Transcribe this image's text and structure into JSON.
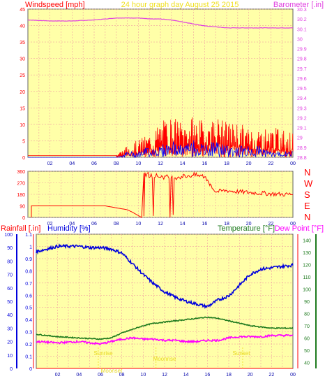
{
  "header": {
    "windspeed_label": "Windspeed [mph]",
    "title": "24 hour graph day   August 25 2015",
    "barometer_label": "Barometer [.in]"
  },
  "middle": {
    "dir_letters": [
      "N",
      "W",
      "S",
      "E",
      "N"
    ]
  },
  "bottom_header": {
    "rainfall_label": "Rainfall [.in]",
    "humidity_label": "Humidity [%]",
    "temperature_label": "Temperature [°F]",
    "dewpoint_label": "Dew Point [°F]"
  },
  "annotations": {
    "sunrise": "Sunrise",
    "moonset": "Moonset",
    "moonrise": "Moonrise",
    "sunset": "Sunset"
  },
  "colors": {
    "plot_bg": "#ffffa8",
    "grid": "#f0a0a0",
    "wind_speed": "#ff0000",
    "wind_gust": "#0000ff",
    "barometer": "#e040e0",
    "humidity": "#0000dd",
    "temperature": "#1e7a1e",
    "dewpoint": "#ff00ff",
    "annotation": "#f0e020"
  },
  "chart_data": [
    {
      "type": "line",
      "x_ticks": [
        "02",
        "04",
        "06",
        "08",
        "10",
        "12",
        "14",
        "16",
        "18",
        "20",
        "22",
        "00"
      ],
      "left_axis": {
        "label": "Windspeed [mph]",
        "ylim": [
          0,
          45
        ],
        "ticks": [
          0,
          5,
          10,
          15,
          20,
          25,
          30,
          35,
          40,
          45
        ]
      },
      "right_axis": {
        "label": "Barometer [.in]",
        "ylim": [
          28.8,
          30.3
        ],
        "ticks": [
          "28.8",
          "28.9",
          "29",
          "29.1",
          "29.2",
          "29.3",
          "29.4",
          "29.5",
          "29.6",
          "29.7",
          "29.8",
          "29.9",
          "30",
          "30.1",
          "30.2",
          "30.3"
        ]
      },
      "series": [
        {
          "name": "Barometer",
          "axis": "right",
          "x_hours": [
            0,
            2,
            4,
            6,
            7,
            8,
            9,
            10,
            11,
            12,
            13,
            14,
            15,
            16,
            17,
            18,
            19,
            20,
            21,
            22,
            23,
            24
          ],
          "values": [
            30.19,
            30.18,
            30.18,
            30.19,
            30.2,
            30.21,
            30.21,
            30.21,
            30.2,
            30.2,
            30.19,
            30.17,
            30.15,
            30.13,
            30.12,
            30.11,
            30.11,
            30.11,
            30.11,
            30.11,
            30.11,
            30.11
          ]
        },
        {
          "name": "Wind speed",
          "axis": "left",
          "x_hours": [
            0,
            8,
            9,
            10,
            11,
            12,
            13,
            14,
            15,
            16,
            17,
            18,
            19,
            20,
            21,
            22,
            23,
            24
          ],
          "values": [
            0.5,
            0.5,
            2,
            3,
            4,
            6,
            7,
            6,
            7,
            6,
            7,
            6,
            6,
            5,
            5,
            5,
            5,
            4
          ]
        },
        {
          "name": "Wind gust",
          "axis": "left",
          "x_hours": [
            0,
            8,
            9,
            10,
            11,
            12,
            13,
            14,
            15,
            16,
            17,
            18,
            19,
            20,
            21,
            22,
            23,
            24
          ],
          "values": [
            0,
            0,
            1,
            1,
            2,
            2,
            3,
            2,
            3,
            2,
            3,
            2,
            2,
            2,
            2,
            1,
            1,
            1
          ]
        }
      ]
    },
    {
      "type": "scatter",
      "x_ticks": [
        "02",
        "04",
        "06",
        "08",
        "10",
        "12",
        "14",
        "16",
        "18",
        "20",
        "22",
        "00"
      ],
      "left_axis": {
        "ylim": [
          0,
          360
        ],
        "ticks": [
          0,
          90,
          180,
          270,
          360
        ]
      },
      "right_axis": {
        "ticks": [
          "N",
          "W",
          "S",
          "E",
          "N"
        ]
      },
      "series": [
        {
          "name": "Wind direction",
          "x_hours": [
            0,
            0.5,
            1,
            3,
            5,
            7,
            9,
            10.2,
            10.5,
            11,
            12,
            13,
            14,
            15,
            16,
            17,
            18,
            19,
            20,
            21,
            22,
            23,
            24
          ],
          "values": [
            90,
            90,
            90,
            90,
            90,
            90,
            60,
            10,
            340,
            330,
            320,
            310,
            320,
            330,
            320,
            200,
            210,
            200,
            195,
            190,
            185,
            180,
            180
          ]
        }
      ]
    },
    {
      "type": "line",
      "x_ticks": [
        "02",
        "04",
        "06",
        "08",
        "10",
        "12",
        "14",
        "16",
        "18",
        "20",
        "22",
        "00"
      ],
      "rain_axis": {
        "label": "Rainfall [.in]",
        "ylim": [
          0,
          1.1
        ],
        "ticks": [
          "0",
          "0.1",
          "0.2",
          "0.3",
          "0.4",
          "0.5",
          "0.6",
          "0.7",
          "0.8",
          "0.9",
          "1",
          "1.1"
        ]
      },
      "humidity_axis": {
        "label": "Humidity [%]",
        "ylim": [
          0,
          100
        ],
        "ticks": [
          0,
          10,
          20,
          30,
          40,
          50,
          60,
          70,
          80,
          90,
          100
        ]
      },
      "temp_axis": {
        "label": "Temperature [°F]",
        "ylim": [
          35,
          145
        ],
        "ticks": [
          40,
          50,
          60,
          70,
          80,
          90,
          100,
          110,
          120,
          130,
          140
        ]
      },
      "series": [
        {
          "name": "Humidity",
          "axis": "humidity",
          "x_hours": [
            0,
            1,
            2,
            3,
            4,
            5,
            6,
            7,
            8,
            9,
            10,
            11,
            12,
            13,
            14,
            15,
            16,
            17,
            18,
            19,
            20,
            21,
            22,
            23,
            24
          ],
          "values": [
            87,
            89,
            91,
            91,
            91,
            90,
            90,
            89,
            86,
            78,
            70,
            63,
            57,
            53,
            50,
            48,
            46,
            51,
            54,
            62,
            70,
            74,
            75,
            76,
            77
          ]
        },
        {
          "name": "Temperature",
          "axis": "temp",
          "x_hours": [
            0,
            2,
            4,
            6,
            7,
            8,
            9,
            10,
            11,
            12,
            13,
            14,
            15,
            16,
            17,
            18,
            19,
            20,
            21,
            22,
            23,
            24
          ],
          "values": [
            63,
            61,
            60,
            59,
            60,
            64,
            67,
            70,
            72,
            73,
            74,
            75,
            76,
            77,
            76,
            74,
            72,
            70,
            69,
            68,
            68,
            68
          ]
        },
        {
          "name": "Dew Point",
          "axis": "temp",
          "x_hours": [
            0,
            2,
            4,
            6,
            7,
            8,
            9,
            10,
            11,
            12,
            13,
            14,
            15,
            16,
            17,
            18,
            19,
            20,
            21,
            22,
            23,
            24
          ],
          "values": [
            57,
            56,
            57,
            55,
            57,
            59,
            60,
            59,
            59,
            58,
            58,
            57,
            57,
            58,
            58,
            60,
            61,
            61,
            61,
            62,
            62,
            62
          ]
        },
        {
          "name": "Rainfall",
          "axis": "rain",
          "x_hours": [
            0,
            24
          ],
          "values": [
            0,
            0
          ]
        }
      ]
    }
  ]
}
